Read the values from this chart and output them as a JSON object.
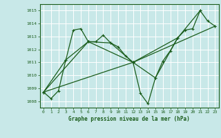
{
  "title": "Graphe pression niveau de la mer (hPa)",
  "bg_color": "#c8e8e8",
  "grid_color": "#ffffff",
  "line_color": "#1a5c1a",
  "xlim": [
    -0.5,
    23.5
  ],
  "ylim": [
    1007.5,
    1015.5
  ],
  "yticks": [
    1008,
    1009,
    1010,
    1011,
    1012,
    1013,
    1014,
    1015
  ],
  "xticks": [
    0,
    1,
    2,
    3,
    4,
    5,
    6,
    7,
    8,
    9,
    10,
    11,
    12,
    13,
    14,
    15,
    16,
    17,
    18,
    19,
    20,
    21,
    22,
    23
  ],
  "series1": {
    "x": [
      0,
      1,
      2,
      3,
      4,
      5,
      6,
      7,
      8,
      9,
      10,
      11,
      12,
      13,
      14,
      15,
      16,
      17,
      18,
      19,
      20,
      21,
      22,
      23
    ],
    "y": [
      1008.7,
      1008.2,
      1008.8,
      1011.2,
      1013.5,
      1013.6,
      1012.6,
      1012.6,
      1013.1,
      1012.5,
      1012.2,
      1011.5,
      1011.0,
      1008.6,
      1007.8,
      1009.8,
      1011.1,
      1011.9,
      1012.9,
      1013.5,
      1013.6,
      1015.0,
      1014.2,
      1013.8
    ]
  },
  "series2": {
    "x": [
      0,
      3,
      6,
      9,
      12,
      15,
      18,
      21
    ],
    "y": [
      1008.7,
      1011.2,
      1012.6,
      1012.5,
      1011.0,
      1009.8,
      1012.9,
      1015.0
    ]
  },
  "series3": {
    "x": [
      0,
      6,
      12,
      18
    ],
    "y": [
      1008.7,
      1012.6,
      1011.0,
      1012.9
    ]
  },
  "series4": {
    "x": [
      0,
      12,
      23
    ],
    "y": [
      1008.7,
      1011.0,
      1013.8
    ]
  }
}
